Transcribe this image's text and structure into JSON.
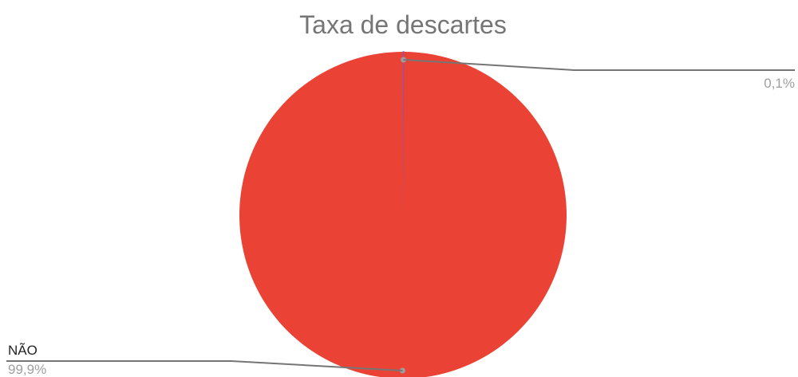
{
  "chart_data": {
    "type": "pie",
    "title": "Taxa de descartes",
    "slices": [
      {
        "label": "",
        "value": 0.1,
        "display": "0,1%",
        "color": "#7e57c2"
      },
      {
        "label": "NÃO",
        "value": 99.9,
        "display": "99,9%",
        "color": "#ea4335"
      }
    ],
    "legend": "none",
    "label_placement": "outside-with-leader-lines"
  }
}
